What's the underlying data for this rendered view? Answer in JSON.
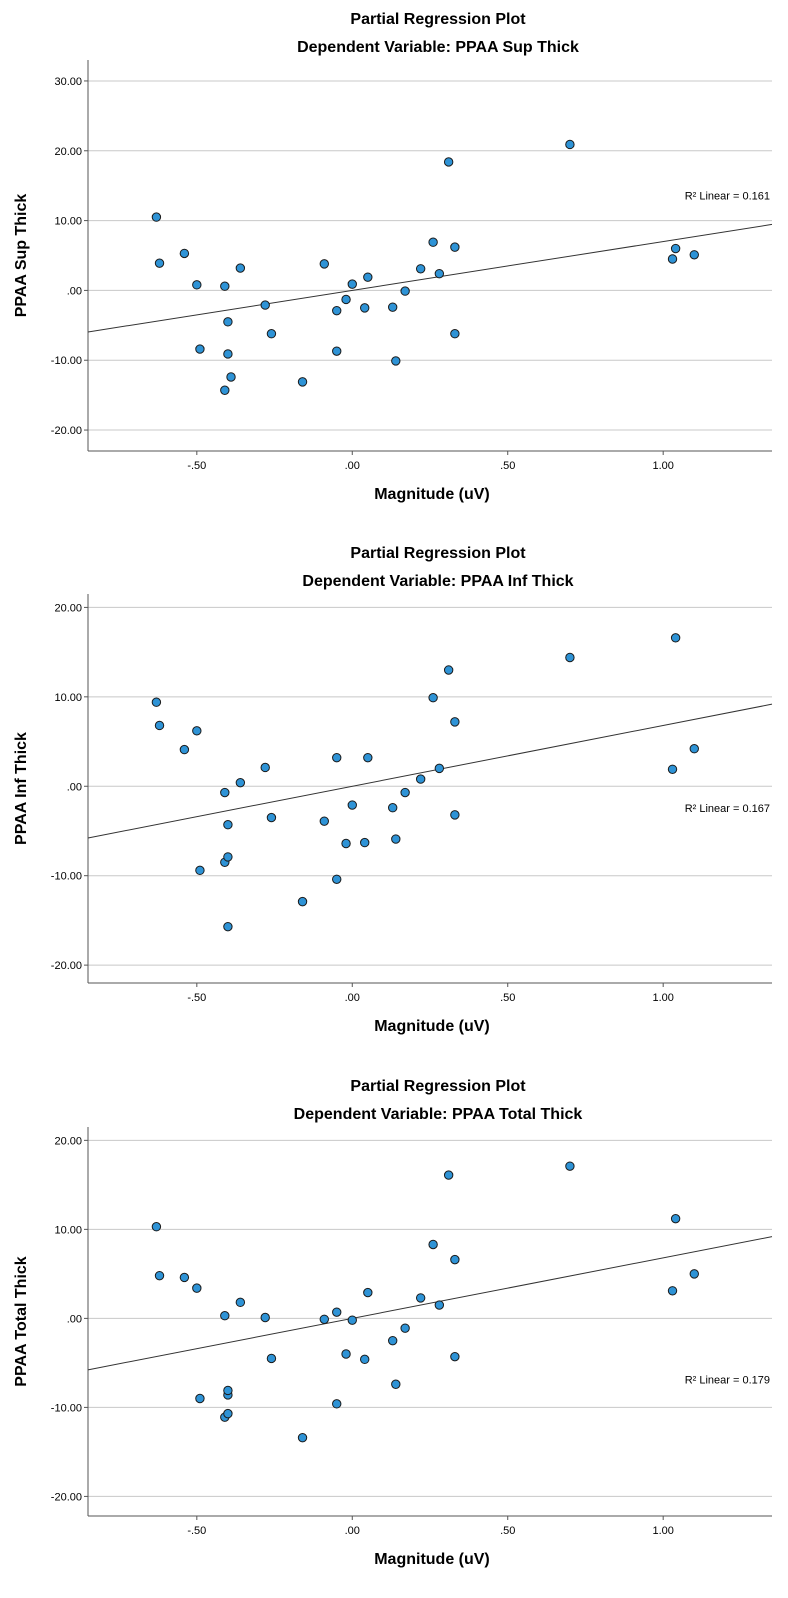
{
  "chart_data": [
    {
      "type": "scatter",
      "title": "Partial Regression Plot",
      "subtitle": "Dependent Variable: PPAA Sup Thick",
      "xlabel": "Magnitude (uV)",
      "ylabel": "PPAA Sup Thick",
      "xlim": [
        -0.85,
        1.35
      ],
      "ylim": [
        -23,
        33
      ],
      "xticks": [
        -0.5,
        0.0,
        0.5,
        1.0
      ],
      "xtick_labels": [
        "-.50",
        ".00",
        ".50",
        "1.00"
      ],
      "yticks": [
        -20,
        -10,
        0,
        10,
        20,
        30
      ],
      "ytick_labels": [
        "-20.00",
        "-10.00",
        ".00",
        "10.00",
        "20.00",
        "30.00"
      ],
      "grid": true,
      "fit_line": {
        "slope": 7.0,
        "intercept": 0.0
      },
      "r2_label": "R² Linear = 0.161",
      "r2_anchor": [
        1.35,
        13.0
      ],
      "points": [
        [
          -0.63,
          10.5
        ],
        [
          -0.62,
          3.9
        ],
        [
          -0.54,
          5.3
        ],
        [
          -0.5,
          0.8
        ],
        [
          -0.49,
          -8.4
        ],
        [
          -0.41,
          0.6
        ],
        [
          -0.4,
          -4.5
        ],
        [
          -0.4,
          -9.1
        ],
        [
          -0.39,
          -12.4
        ],
        [
          -0.41,
          -14.3
        ],
        [
          -0.36,
          3.2
        ],
        [
          -0.28,
          -2.1
        ],
        [
          -0.26,
          -6.2
        ],
        [
          -0.16,
          -13.1
        ],
        [
          -0.09,
          3.8
        ],
        [
          -0.05,
          -2.9
        ],
        [
          -0.05,
          -8.7
        ],
        [
          -0.02,
          -1.3
        ],
        [
          0.0,
          0.9
        ],
        [
          0.04,
          -2.5
        ],
        [
          0.05,
          1.9
        ],
        [
          0.13,
          -2.4
        ],
        [
          0.14,
          -10.1
        ],
        [
          0.17,
          -0.1
        ],
        [
          0.22,
          3.1
        ],
        [
          0.26,
          6.9
        ],
        [
          0.28,
          2.4
        ],
        [
          0.31,
          18.4
        ],
        [
          0.33,
          6.2
        ],
        [
          0.33,
          -6.2
        ],
        [
          0.7,
          20.9
        ],
        [
          1.03,
          4.5
        ],
        [
          1.04,
          6.0
        ],
        [
          1.1,
          5.1
        ]
      ]
    },
    {
      "type": "scatter",
      "title": "Partial Regression Plot",
      "subtitle": "Dependent Variable: PPAA Inf Thick",
      "xlabel": "Magnitude (uV)",
      "ylabel": "PPAA Inf Thick",
      "xlim": [
        -0.85,
        1.35
      ],
      "ylim": [
        -22,
        21.5
      ],
      "xticks": [
        -0.5,
        0.0,
        0.5,
        1.0
      ],
      "xtick_labels": [
        "-.50",
        ".00",
        ".50",
        "1.00"
      ],
      "yticks": [
        -20,
        -10,
        0,
        10,
        20
      ],
      "ytick_labels": [
        "-20.00",
        "-10.00",
        ".00",
        "10.00",
        "20.00"
      ],
      "grid": true,
      "fit_line": {
        "slope": 6.8,
        "intercept": 0.0
      },
      "r2_label": "R² Linear = 0.167",
      "r2_anchor": [
        1.35,
        -2.9
      ],
      "points": [
        [
          -0.63,
          9.4
        ],
        [
          -0.62,
          6.8
        ],
        [
          -0.54,
          4.1
        ],
        [
          -0.5,
          6.2
        ],
        [
          -0.49,
          -9.4
        ],
        [
          -0.41,
          -0.7
        ],
        [
          -0.4,
          -4.3
        ],
        [
          -0.41,
          -8.5
        ],
        [
          -0.4,
          -7.9
        ],
        [
          -0.4,
          -15.7
        ],
        [
          -0.36,
          0.4
        ],
        [
          -0.28,
          2.1
        ],
        [
          -0.26,
          -3.5
        ],
        [
          -0.16,
          -12.9
        ],
        [
          -0.09,
          -3.9
        ],
        [
          -0.05,
          3.2
        ],
        [
          -0.05,
          -10.4
        ],
        [
          -0.02,
          -6.4
        ],
        [
          0.0,
          -2.1
        ],
        [
          0.04,
          -6.3
        ],
        [
          0.05,
          3.2
        ],
        [
          0.13,
          -2.4
        ],
        [
          0.14,
          -5.9
        ],
        [
          0.17,
          -0.7
        ],
        [
          0.22,
          0.8
        ],
        [
          0.26,
          9.9
        ],
        [
          0.28,
          2.0
        ],
        [
          0.31,
          13.0
        ],
        [
          0.33,
          7.2
        ],
        [
          0.33,
          -3.2
        ],
        [
          0.7,
          14.4
        ],
        [
          1.03,
          1.9
        ],
        [
          1.04,
          16.6
        ],
        [
          1.1,
          4.2
        ]
      ]
    },
    {
      "type": "scatter",
      "title": "Partial Regression Plot",
      "subtitle": "Dependent Variable: PPAA Total Thick",
      "xlabel": "Magnitude (uV)",
      "ylabel": "PPAA Total Thick",
      "xlim": [
        -0.85,
        1.35
      ],
      "ylim": [
        -22.2,
        21.5
      ],
      "xticks": [
        -0.5,
        0.0,
        0.5,
        1.0
      ],
      "xtick_labels": [
        "-.50",
        ".00",
        ".50",
        "1.00"
      ],
      "yticks": [
        -20,
        -10,
        0,
        10,
        20
      ],
      "ytick_labels": [
        "-20.00",
        "-10.00",
        ".00",
        "10.00",
        "20.00"
      ],
      "grid": true,
      "fit_line": {
        "slope": 6.8,
        "intercept": 0.0
      },
      "r2_label": "R² Linear = 0.179",
      "r2_anchor": [
        1.35,
        -7.3
      ],
      "points": [
        [
          -0.63,
          10.3
        ],
        [
          -0.62,
          4.8
        ],
        [
          -0.54,
          4.6
        ],
        [
          -0.5,
          3.4
        ],
        [
          -0.49,
          -9.0
        ],
        [
          -0.41,
          0.3
        ],
        [
          -0.41,
          -11.1
        ],
        [
          -0.4,
          -8.6
        ],
        [
          -0.4,
          -8.1
        ],
        [
          -0.4,
          -10.7
        ],
        [
          -0.36,
          1.8
        ],
        [
          -0.28,
          0.1
        ],
        [
          -0.26,
          -4.5
        ],
        [
          -0.16,
          -13.4
        ],
        [
          -0.09,
          -0.1
        ],
        [
          -0.05,
          0.7
        ],
        [
          -0.05,
          -9.6
        ],
        [
          -0.02,
          -4.0
        ],
        [
          0.0,
          -0.2
        ],
        [
          0.04,
          -4.6
        ],
        [
          0.05,
          2.9
        ],
        [
          0.13,
          -2.5
        ],
        [
          0.14,
          -7.4
        ],
        [
          0.17,
          -1.1
        ],
        [
          0.22,
          2.3
        ],
        [
          0.26,
          8.3
        ],
        [
          0.28,
          1.5
        ],
        [
          0.31,
          16.1
        ],
        [
          0.33,
          6.6
        ],
        [
          0.33,
          -4.3
        ],
        [
          0.7,
          17.1
        ],
        [
          1.03,
          3.1
        ],
        [
          1.04,
          11.2
        ],
        [
          1.1,
          5.0
        ]
      ]
    }
  ]
}
